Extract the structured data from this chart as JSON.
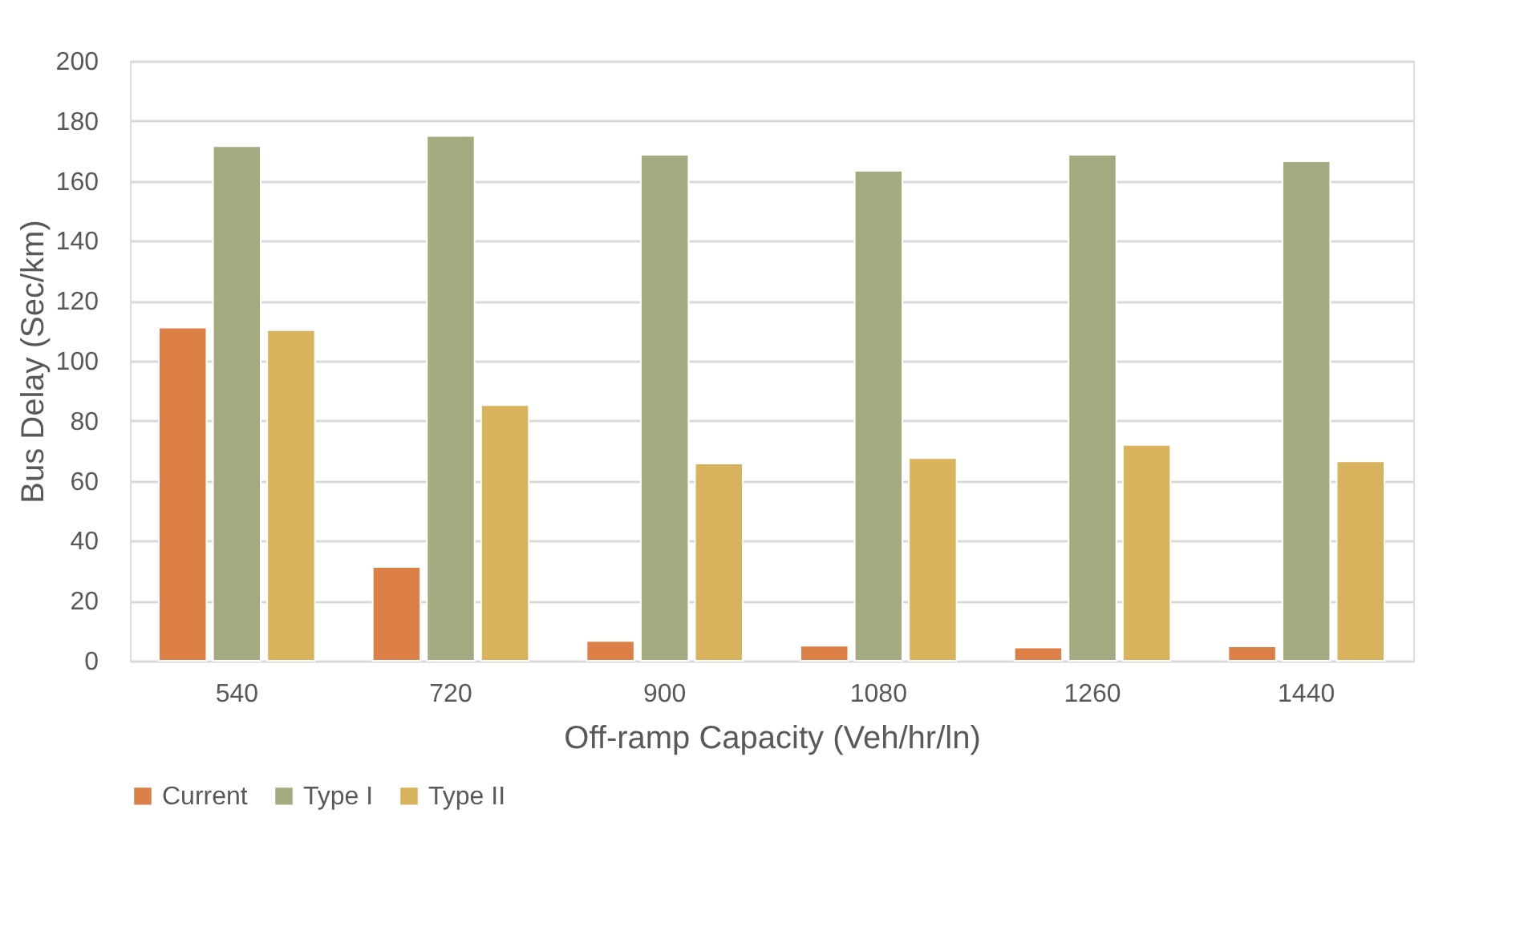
{
  "chart_data": {
    "type": "bar",
    "xlabel": "Off-ramp Capacity (Veh/hr/ln)",
    "ylabel": "Bus Delay (Sec/km)",
    "categories": [
      "540",
      "720",
      "900",
      "1080",
      "1260",
      "1440"
    ],
    "series": [
      {
        "name": "Current",
        "color": "#dd8047",
        "values": [
          111.1,
          31.3,
          6.6,
          5.0,
          4.4,
          4.8
        ]
      },
      {
        "name": "Type I",
        "color": "#a5ab81",
        "values": [
          171.6,
          175.0,
          168.7,
          163.4,
          168.7,
          166.6
        ]
      },
      {
        "name": "Type II",
        "color": "#d8b25c",
        "values": [
          110.2,
          85.2,
          65.8,
          67.6,
          72.0,
          66.5
        ]
      }
    ],
    "ylim": [
      0,
      200
    ],
    "yticks": [
      0,
      20,
      40,
      60,
      80,
      100,
      120,
      140,
      160,
      180,
      200
    ],
    "grid": "y",
    "legend": "bottom"
  }
}
